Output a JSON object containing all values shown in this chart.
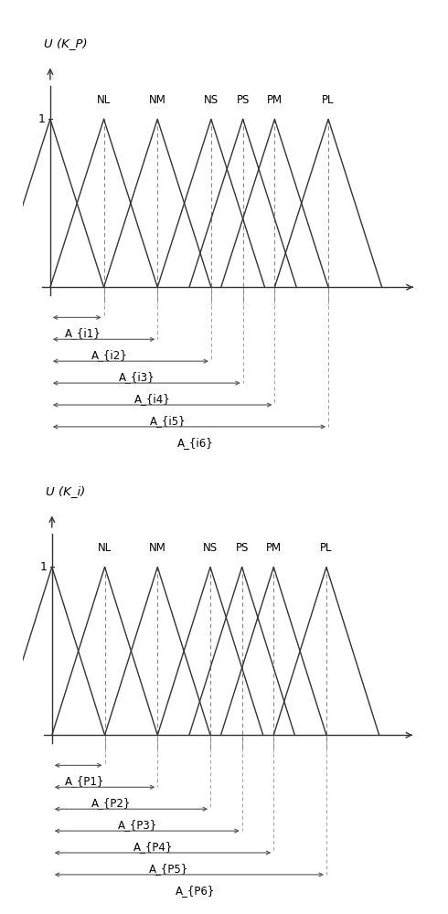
{
  "ylabel_top": "U (K_P)",
  "ylabel_bot": "U (K_i)",
  "labels": [
    "NL",
    "NM",
    "NS",
    "PS",
    "PM",
    "PL"
  ],
  "bracket_labels_top": [
    "A_{i1}",
    "A_{i2}",
    "A_{i3}",
    "A_{i4}",
    "A_{i5}",
    "A_{i6}"
  ],
  "bracket_labels_bot": [
    "A_{P1}",
    "A_{P2}",
    "A_{P3}",
    "A_{P4}",
    "A_{P5}",
    "A_{P6}"
  ],
  "figsize": [
    4.9,
    10.0
  ],
  "dpi": 100,
  "line_color": "#333333",
  "dashed_color": "#888888",
  "bracket_color": "#555555"
}
